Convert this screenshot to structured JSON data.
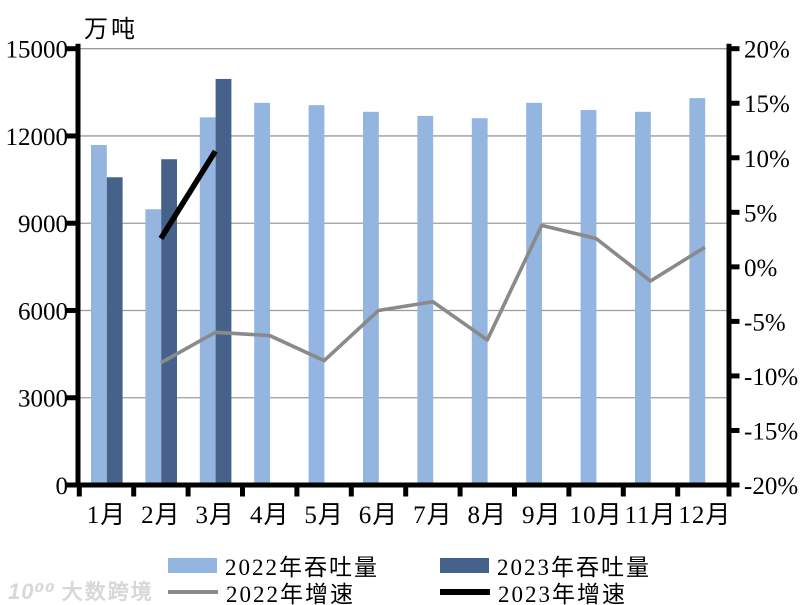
{
  "watermark": {
    "logo": "10⁰⁰",
    "text": "大数跨境"
  },
  "chart_data": {
    "type": "bar",
    "subtype": "bar-line-combo",
    "title": "",
    "unit_label": "万吨",
    "categories": [
      "1月",
      "2月",
      "3月",
      "4月",
      "5月",
      "6月",
      "7月",
      "8月",
      "9月",
      "10月",
      "11月",
      "12月"
    ],
    "series": [
      {
        "name": "2022年吞吐量",
        "type": "bar",
        "axis": "left",
        "color": "#93b5df",
        "values": [
          11690,
          9480,
          12640,
          13140,
          13060,
          12830,
          12690,
          12610,
          13140,
          12890,
          12830,
          13300
        ]
      },
      {
        "name": "2023年吞吐量",
        "type": "bar",
        "axis": "left",
        "color": "#46628a",
        "values": [
          10580,
          11200,
          13960,
          null,
          null,
          null,
          null,
          null,
          null,
          null,
          null,
          null
        ]
      },
      {
        "name": "2022年增速",
        "type": "line",
        "axis": "right",
        "color": "#8a8a8a",
        "values": [
          null,
          -8.8,
          -6.0,
          -6.3,
          -8.6,
          -4.0,
          -3.2,
          -6.7,
          3.8,
          2.6,
          -1.3,
          1.8
        ]
      },
      {
        "name": "2023年增速",
        "type": "line",
        "axis": "right",
        "color": "#000000",
        "values": [
          null,
          2.6,
          10.6,
          null,
          null,
          null,
          null,
          null,
          null,
          null,
          null,
          null
        ]
      }
    ],
    "left_axis": {
      "title": "万吨",
      "min": 0,
      "max": 15000,
      "tick_labels": [
        "15000",
        "12000",
        "9000",
        "6000",
        "3000",
        "0"
      ]
    },
    "right_axis": {
      "min": -20,
      "max": 20,
      "tick_labels": [
        "20%",
        "15%",
        "10%",
        "5%",
        "0%",
        "-5%",
        "-10%",
        "-15%",
        "-20%"
      ]
    },
    "grid": true,
    "gridline_color": "#9b9b9b",
    "legend_position": "bottom"
  }
}
